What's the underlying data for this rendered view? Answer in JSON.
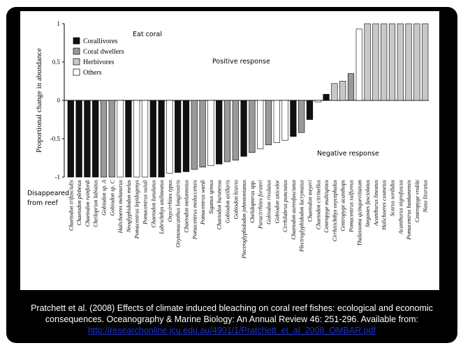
{
  "caption": {
    "line1": "Pratchett et al. (2008) Effects of climate induced bleaching on coral reef fishes: ecological and economic",
    "line2": "consequences. Oceanography & Marine Biology: An Annual Review 46: 251-296. Available from:",
    "link": "http://researchonline.jcu.edu.au/4901/1/Pratchett_et_al_2008_OMBAR.pdf"
  },
  "colors": {
    "Corallivores": "#111111",
    "Coral dwellers": "#9a9a9a",
    "Herbivores": "#c8c8c8",
    "Others": "#ffffff"
  },
  "chart_data": {
    "type": "bar",
    "ylabel": "Proportional change in abundance",
    "ylim": [
      -1,
      1
    ],
    "yticks": [
      "-1",
      "-0.5",
      "0",
      "0.5",
      "1"
    ],
    "annotations": {
      "eat_coral": "Eat coral",
      "positive": "Positive response",
      "negative": "Negative response",
      "disappeared_1": "Disappeared",
      "disappeared_2": "from reef"
    },
    "legend": {
      "placement": "top-left",
      "entries": [
        "Corallivores",
        "Coral dwellers",
        "Herbivores",
        "Others"
      ]
    },
    "categories": [
      "Chaetodon trifascialis",
      "Chaetodon plebeius",
      "Chaetodon rainfordi",
      "Cheiloprion labiatus",
      "Gobiodon sp. A",
      "Gobiodon sp. C",
      "Halichoeres melanurus",
      "Neoglyphidodon melas",
      "Pomacentrus lepidogenys",
      "Pomacentrus vaiuli",
      "Chaetodon lunulatus",
      "Labrichthys unilineatus",
      "Oxycirrhites typus",
      "Oxymonacanthus longirostris",
      "Chaetodon melannotus",
      "Pomacentrus moluccensis",
      "Pomacentrus wardi",
      "Siganus spinus",
      "Chaetodon baronessa",
      "Gobiodon axillaris",
      "Gobiodon histrio",
      "Plectroglyphidodon johnstonianus",
      "Chelidopterus spp.",
      "Paracirrhites forsteri",
      "Gobiodon rivulatus",
      "Gobiodon unicolor",
      "Cirrhilabrus punctatus",
      "Chaetodon aureofasciatus",
      "Plectroglyphidodon lacrymatus",
      "Chaetodon meyeri",
      "Chaetodon citrinellus",
      "Centropyge multispinis",
      "Cirrhitichthys oxycephalus",
      "Centropyge acanthops",
      "Pomacentrus sulfureus",
      "Thalassoma quinquevittatum",
      "Stegastes fasciolatus",
      "Acanthurus lineatus",
      "Halichoeres cosmetus",
      "Scarus sordidus",
      "Acanthurus nigrofuscus",
      "Pomacentrus bankanensis",
      "Centropyge vroliki",
      "Naso lituratus"
    ],
    "groups": [
      "Corallivores",
      "Corallivores",
      "Corallivores",
      "Corallivores",
      "Coral dwellers",
      "Coral dwellers",
      "Others",
      "Corallivores",
      "Others",
      "Others",
      "Corallivores",
      "Corallivores",
      "Others",
      "Corallivores",
      "Corallivores",
      "Coral dwellers",
      "Coral dwellers",
      "Others",
      "Corallivores",
      "Coral dwellers",
      "Coral dwellers",
      "Corallivores",
      "Coral dwellers",
      "Others",
      "Coral dwellers",
      "Others",
      "Others",
      "Corallivores",
      "Coral dwellers",
      "Corallivores",
      "Others",
      "Corallivores",
      "Herbivores",
      "Herbivores",
      "Coral dwellers",
      "Others",
      "Herbivores",
      "Herbivores",
      "Herbivores",
      "Herbivores",
      "Herbivores",
      "Herbivores",
      "Herbivores",
      "Herbivores"
    ],
    "values": [
      -1,
      -1,
      -1,
      -1,
      -1,
      -1,
      -1,
      -1,
      -1,
      -1,
      -1,
      -1,
      -0.95,
      -0.94,
      -0.93,
      -0.9,
      -0.87,
      -0.85,
      -0.83,
      -0.8,
      -0.78,
      -0.73,
      -0.68,
      -0.63,
      -0.58,
      -0.55,
      -0.52,
      -0.47,
      -0.42,
      -0.25,
      -0.02,
      0.08,
      0.22,
      0.25,
      0.35,
      0.93,
      1,
      1,
      1,
      1,
      1,
      1,
      1,
      1
    ]
  }
}
